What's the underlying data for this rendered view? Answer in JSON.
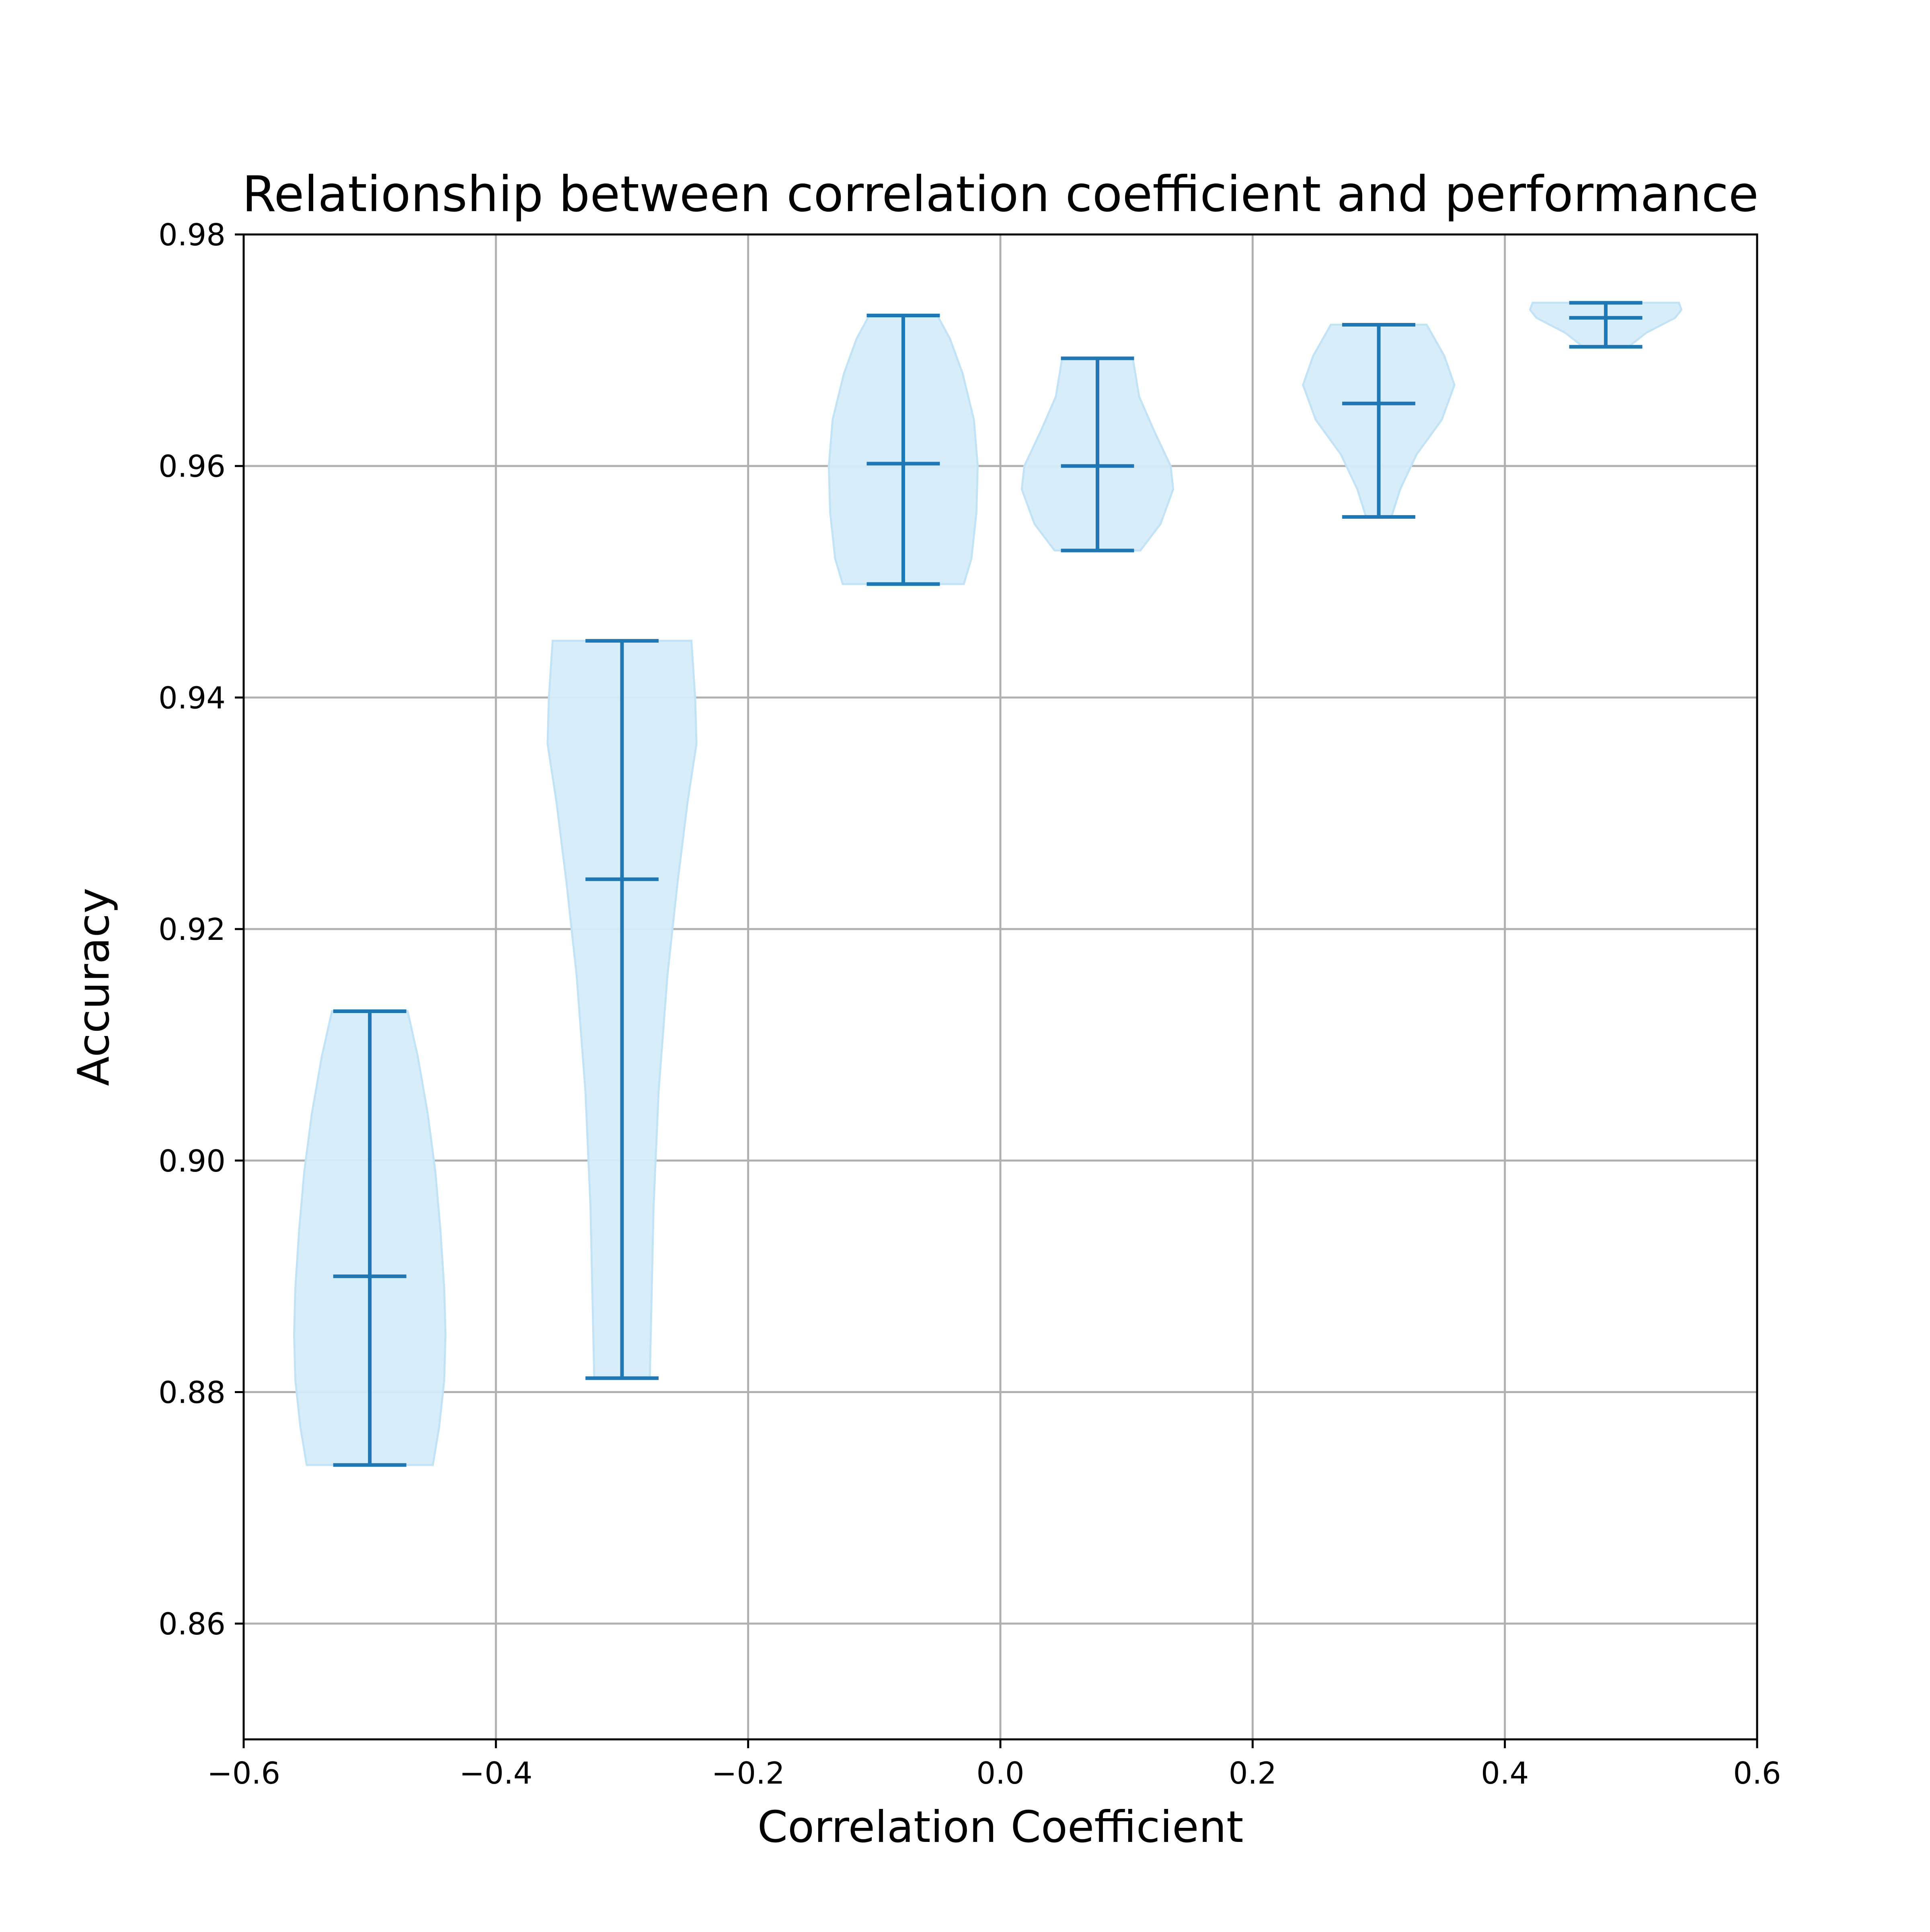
{
  "chart_data": {
    "type": "violin",
    "title": "Relationship between correlation coefficient and performance",
    "xlabel": "Correlation Coefficient",
    "ylabel": "Accuracy",
    "xlim": [
      -0.6,
      0.6
    ],
    "ylim": [
      0.85,
      0.98
    ],
    "xticks": [
      "−0.6",
      "−0.4",
      "−0.2",
      "0.0",
      "0.2",
      "0.4",
      "0.6"
    ],
    "yticks": [
      "0.86",
      "0.88",
      "0.90",
      "0.92",
      "0.94",
      "0.96",
      "0.98"
    ],
    "grid": true,
    "colors": {
      "violin_fill": "#d6ecfa",
      "violin_edge": "#c2e2f6",
      "stat_lines": "#1f77b4",
      "grid": "#b0b0b0",
      "axes": "#000000"
    },
    "violins": [
      {
        "x": -0.5,
        "min": 0.8737,
        "median": 0.89,
        "max": 0.9129,
        "profile": [
          [
            0.8737,
            0.05
          ],
          [
            0.877,
            0.055
          ],
          [
            0.881,
            0.059
          ],
          [
            0.885,
            0.06
          ],
          [
            0.889,
            0.059
          ],
          [
            0.894,
            0.056
          ],
          [
            0.899,
            0.052
          ],
          [
            0.904,
            0.046
          ],
          [
            0.909,
            0.038
          ],
          [
            0.9129,
            0.03
          ]
        ]
      },
      {
        "x": -0.3,
        "min": 0.8812,
        "median": 0.9243,
        "max": 0.9449,
        "profile": [
          [
            0.8812,
            0.022
          ],
          [
            0.886,
            0.023
          ],
          [
            0.896,
            0.025
          ],
          [
            0.906,
            0.029
          ],
          [
            0.916,
            0.036
          ],
          [
            0.924,
            0.044
          ],
          [
            0.931,
            0.052
          ],
          [
            0.936,
            0.059
          ],
          [
            0.94,
            0.058
          ],
          [
            0.9449,
            0.055
          ]
        ]
      },
      {
        "x": -0.077,
        "min": 0.9498,
        "median": 0.9602,
        "max": 0.973,
        "profile": [
          [
            0.9498,
            0.048
          ],
          [
            0.952,
            0.054
          ],
          [
            0.956,
            0.058
          ],
          [
            0.96,
            0.059
          ],
          [
            0.964,
            0.056
          ],
          [
            0.968,
            0.047
          ],
          [
            0.971,
            0.037
          ],
          [
            0.973,
            0.027
          ]
        ]
      },
      {
        "x": 0.077,
        "min": 0.9527,
        "median": 0.96,
        "max": 0.9693,
        "profile": [
          [
            0.9527,
            0.034
          ],
          [
            0.955,
            0.05
          ],
          [
            0.958,
            0.06
          ],
          [
            0.96,
            0.058
          ],
          [
            0.963,
            0.045
          ],
          [
            0.966,
            0.033
          ],
          [
            0.9693,
            0.028
          ]
        ]
      },
      {
        "x": 0.3,
        "min": 0.9556,
        "median": 0.9654,
        "max": 0.9722,
        "profile": [
          [
            0.9556,
            0.01
          ],
          [
            0.958,
            0.017
          ],
          [
            0.961,
            0.03
          ],
          [
            0.964,
            0.05
          ],
          [
            0.967,
            0.06
          ],
          [
            0.9695,
            0.052
          ],
          [
            0.9722,
            0.038
          ]
        ]
      },
      {
        "x": 0.48,
        "min": 0.9703,
        "median": 0.9728,
        "max": 0.9741,
        "profile": [
          [
            0.9703,
            0.018
          ],
          [
            0.9715,
            0.032
          ],
          [
            0.9728,
            0.055
          ],
          [
            0.9735,
            0.06
          ],
          [
            0.9741,
            0.058
          ]
        ]
      }
    ]
  }
}
